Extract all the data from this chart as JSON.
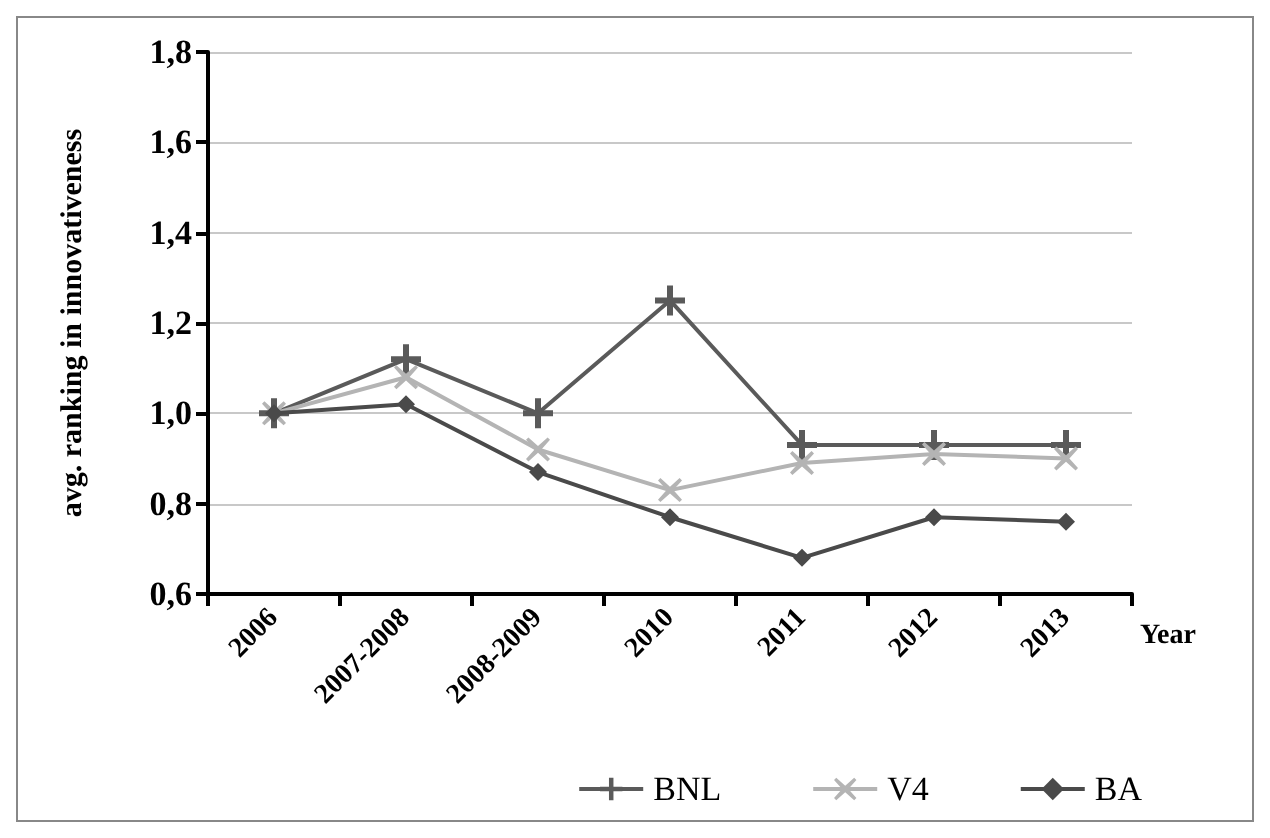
{
  "chart_data": {
    "type": "line",
    "xlabel": "Year",
    "ylabel": "avg. ranking in innovativeness",
    "categories": [
      "2006",
      "2007-2008",
      "2008-2009",
      "2010",
      "2011",
      "2012",
      "2013"
    ],
    "series": [
      {
        "name": "BNL",
        "color": "#5a5a5a",
        "marker": "cross",
        "values": [
          1.0,
          1.12,
          1.0,
          1.25,
          0.93,
          0.93,
          0.93
        ]
      },
      {
        "name": "V4",
        "color": "#b4b4b4",
        "marker": "x",
        "values": [
          1.0,
          1.08,
          0.92,
          0.83,
          0.89,
          0.91,
          0.9
        ]
      },
      {
        "name": "BA",
        "color": "#4a4a4a",
        "marker": "diamond",
        "values": [
          1.0,
          1.02,
          0.87,
          0.77,
          0.68,
          0.77,
          0.76
        ]
      }
    ],
    "ylim": [
      0.6,
      1.8
    ],
    "yticks": [
      {
        "value": 0.6,
        "label": "0,6"
      },
      {
        "value": 0.8,
        "label": "0,8"
      },
      {
        "value": 1.0,
        "label": "1,0"
      },
      {
        "value": 1.2,
        "label": "1,2"
      },
      {
        "value": 1.4,
        "label": "1,4"
      },
      {
        "value": 1.6,
        "label": "1,6"
      },
      {
        "value": 1.8,
        "label": "1,8"
      }
    ],
    "grid": "y",
    "legend": "bottom right",
    "line_style": "solid"
  }
}
